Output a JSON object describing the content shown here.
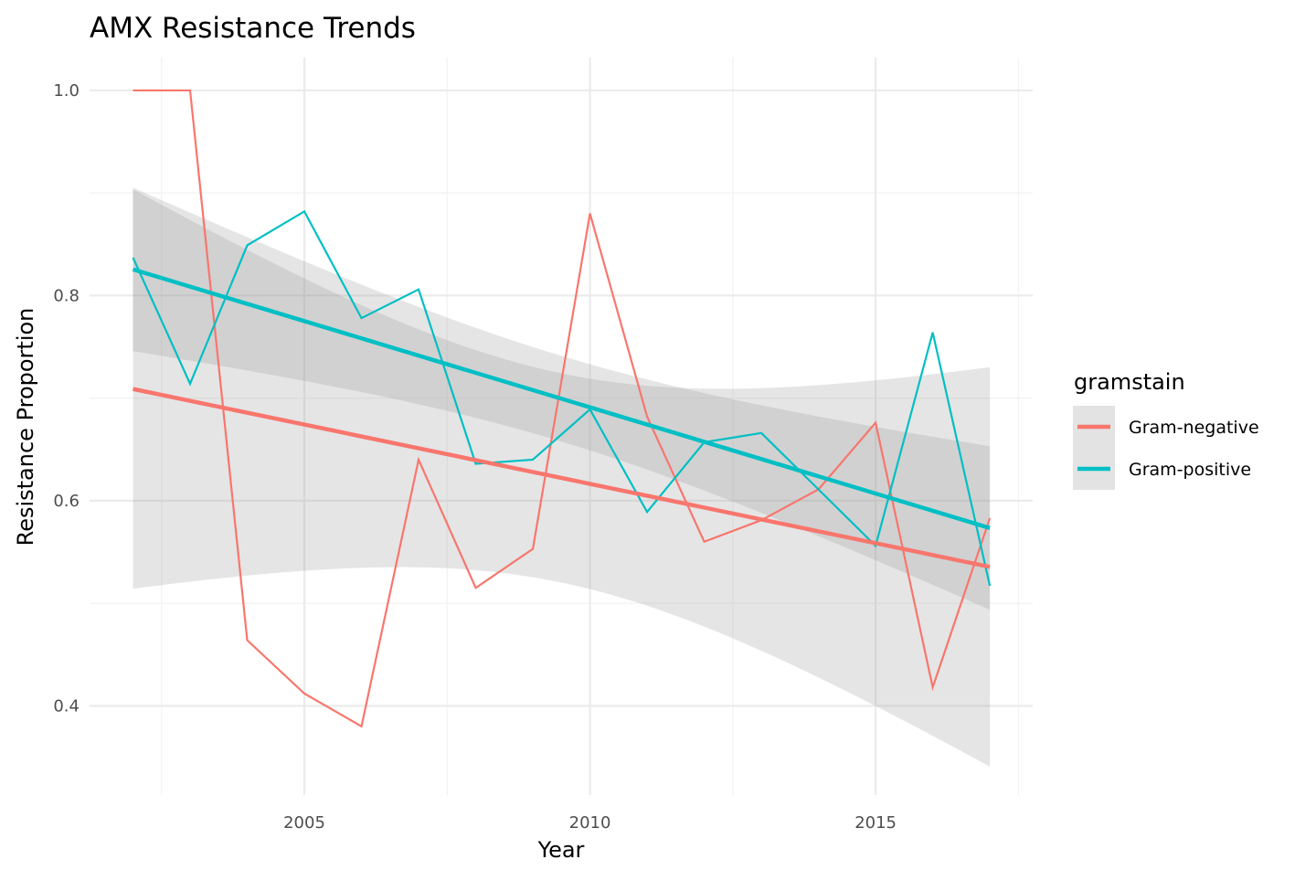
{
  "chart_data": {
    "type": "line",
    "title": "AMX Resistance Trends",
    "xlabel": "Year",
    "ylabel": "Resistance Proportion",
    "xlim": [
      2001.24,
      2017.75
    ],
    "ylim": [
      0.313,
      1.032
    ],
    "x_ticks": [
      2005,
      2010,
      2015
    ],
    "x_tick_labels": [
      "2005",
      "2010",
      "2015"
    ],
    "y_ticks": [
      0.4,
      0.6,
      0.8,
      1.0
    ],
    "y_tick_labels": [
      "0.4",
      "0.6",
      "0.8",
      "1.0"
    ],
    "grid": true,
    "legend": {
      "title": "gramstain",
      "position": "right"
    },
    "smooth": {
      "method": "linear",
      "confidence_band": true
    },
    "x": [
      2002,
      2003,
      2004,
      2005,
      2006,
      2007,
      2008,
      2009,
      2010,
      2011,
      2012,
      2013,
      2014,
      2015,
      2016,
      2017
    ],
    "series": [
      {
        "name": "Gram-negative",
        "color": "#F8766D",
        "values": [
          1.0,
          1.0,
          0.464,
          0.412,
          0.38,
          0.64,
          0.515,
          0.553,
          0.88,
          0.682,
          0.56,
          0.581,
          0.611,
          0.676,
          0.418,
          0.583
        ]
      },
      {
        "name": "Gram-positive",
        "color": "#00BFC4",
        "values": [
          0.837,
          0.714,
          0.849,
          0.882,
          0.778,
          0.806,
          0.636,
          0.64,
          0.689,
          0.589,
          0.657,
          0.666,
          0.611,
          0.556,
          0.764,
          0.517
        ]
      }
    ]
  }
}
